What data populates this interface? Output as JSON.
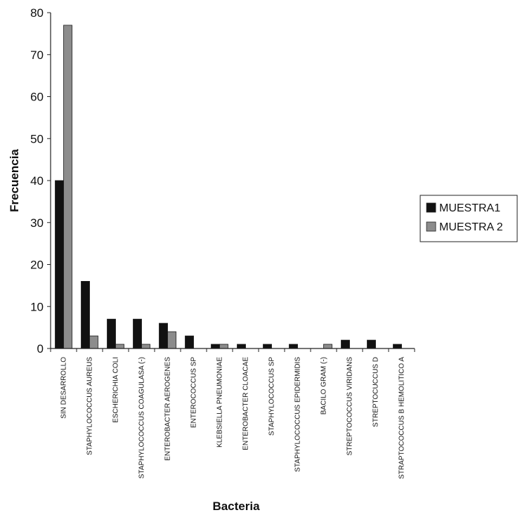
{
  "chart_data": {
    "type": "bar",
    "title": "",
    "xlabel": "Bacteria",
    "ylabel": "Frecuencia",
    "ylim": [
      0,
      80
    ],
    "yticks": [
      0,
      10,
      20,
      30,
      40,
      50,
      60,
      70,
      80
    ],
    "grid": false,
    "legend_position": "right",
    "categories": [
      "SIN DESARROLLO",
      "STAPHYLOCOCCUS AUREUS",
      "ESCHERICHIA COLI",
      "STAPHYLOCOCCUS COAGULASA (-)",
      "ENTEROBACTER AEROGENES",
      "ENTEROCOCCUS SP",
      "KLEBSIELLA PNEUMONIAE",
      "ENTEROBACTER CLOACAE",
      "STAPHYLOCOCCUS SP",
      "STAPHYLOCOCCUS EPIDERMIDIS",
      "BACILO GRAM (-)",
      "STREPTOCOCCUS VIRIDANS",
      "STREPTOCUCCUS D",
      "STRAPTOCOCCUS B HEMOLITICO A"
    ],
    "series": [
      {
        "name": "MUESTRA1",
        "color": "#111111",
        "values": [
          40,
          16,
          7,
          7,
          6,
          3,
          1,
          1,
          1,
          1,
          0,
          2,
          2,
          1
        ]
      },
      {
        "name": "MUESTRA 2",
        "color": "#8c8c8c",
        "values": [
          77,
          3,
          1,
          1,
          4,
          0,
          1,
          0,
          0,
          0,
          1,
          0,
          0,
          0
        ]
      }
    ]
  }
}
